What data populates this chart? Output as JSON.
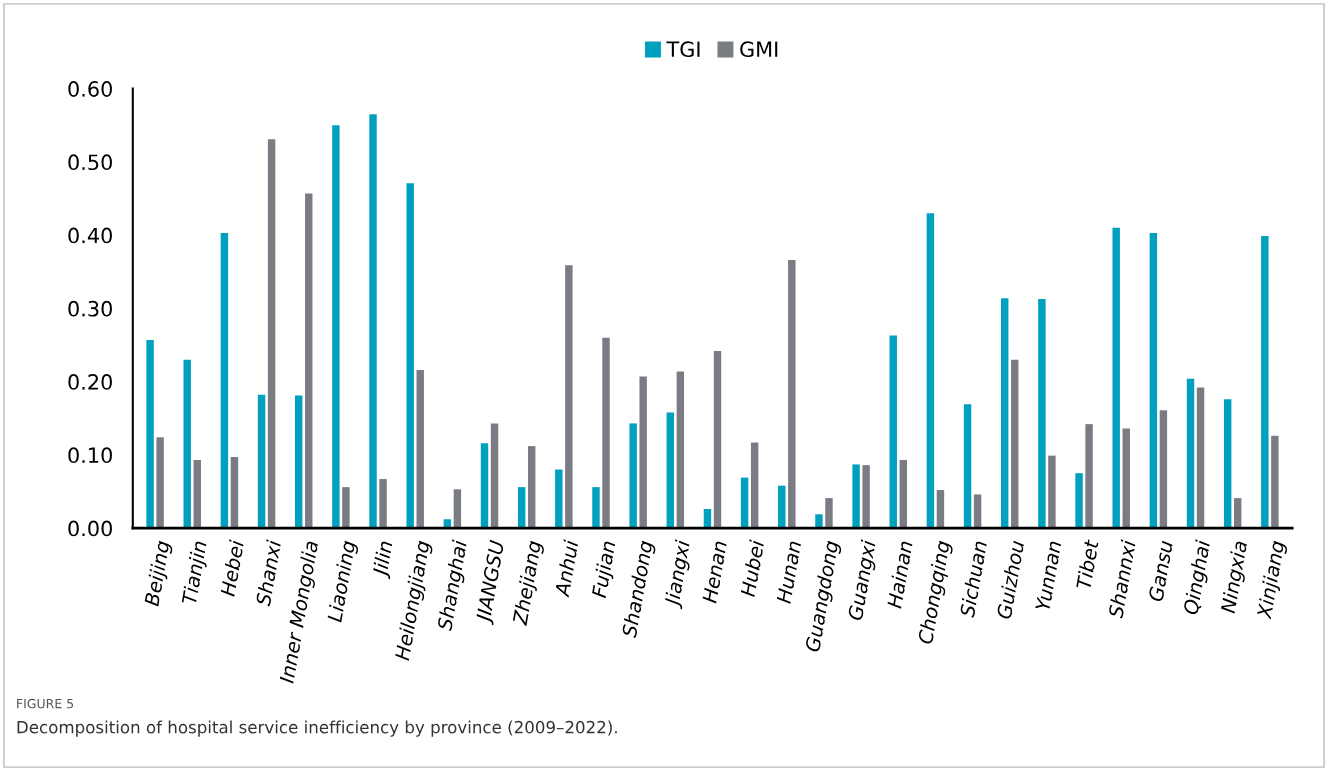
{
  "chart_data": {
    "type": "bar",
    "categories": [
      "Beijing",
      "Tianjin",
      "Hebei",
      "Shanxi",
      "Inner Mongolia",
      "Liaoning",
      "Jilin",
      "Heilongjiang",
      "Shanghai",
      "JIANGSU",
      "Zhejiang",
      "Anhui",
      "Fujian",
      "Shandong",
      "Jiangxi",
      "Henan",
      "Hubei",
      "Hunan",
      "Guangdong",
      "Guangxi",
      "Hainan",
      "Chongqing",
      "Sichuan",
      "Guizhou",
      "Yunnan",
      "Tibet",
      "Shannxi",
      "Gansu",
      "Qinghai",
      "Ningxia",
      "Xinjiang"
    ],
    "series": [
      {
        "name": "TGI",
        "color": "#00a0bf",
        "values": [
          0.257,
          0.23,
          0.403,
          0.182,
          0.181,
          0.55,
          0.565,
          0.471,
          0.012,
          0.116,
          0.056,
          0.08,
          0.056,
          0.143,
          0.158,
          0.026,
          0.069,
          0.058,
          0.019,
          0.087,
          0.263,
          0.43,
          0.169,
          0.314,
          0.313,
          0.075,
          0.41,
          0.403,
          0.204,
          0.176,
          0.399
        ]
      },
      {
        "name": "GMI",
        "color": "#7a7c83",
        "values": [
          0.124,
          0.093,
          0.097,
          0.531,
          0.457,
          0.056,
          0.067,
          0.216,
          0.053,
          0.143,
          0.112,
          0.359,
          0.26,
          0.207,
          0.214,
          0.242,
          0.117,
          0.366,
          0.041,
          0.086,
          0.093,
          0.052,
          0.046,
          0.23,
          0.099,
          0.142,
          0.136,
          0.161,
          0.192,
          0.041,
          0.126
        ]
      }
    ],
    "ylim": [
      0,
      0.6
    ],
    "yticks": [
      {
        "value": 0,
        "label": "0.00"
      },
      {
        "value": 0.1,
        "label": "0.10"
      },
      {
        "value": 0.2,
        "label": "0.20"
      },
      {
        "value": 0.3,
        "label": "0.30"
      },
      {
        "value": 0.4,
        "label": "0.40"
      },
      {
        "value": 0.5,
        "label": "0.50"
      },
      {
        "value": 0.6,
        "label": "0.60"
      }
    ],
    "grid": false,
    "legend": "top",
    "annotations": [
      "FIGURE 5",
      "Decomposition of hospital service inefficiency by province (2009–2022)."
    ]
  }
}
